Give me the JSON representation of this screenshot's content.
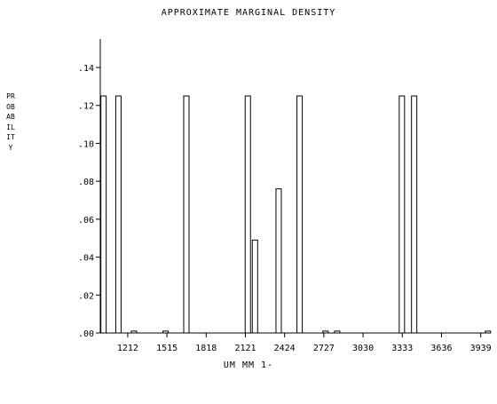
{
  "chart_data": {
    "type": "bar",
    "title": "APPROXIMATE MARGINAL DENSITY",
    "xlabel": "UM MM 1-",
    "ylabel": "PROBABILITY",
    "x_ticks": [
      1212,
      1515,
      1818,
      2121,
      2424,
      2727,
      3030,
      3333,
      3636,
      3939
    ],
    "y_ticks": [
      ".00",
      ".02",
      ".04",
      ".06",
      ".08",
      ".10",
      ".12",
      ".14"
    ],
    "xlim": [
      1000,
      4010
    ],
    "ylim": [
      0,
      0.155
    ],
    "grid": false,
    "bars": [
      {
        "x": 1025,
        "y": 0.125
      },
      {
        "x": 1140,
        "y": 0.125
      },
      {
        "x": 1260,
        "y": 0.001
      },
      {
        "x": 1505,
        "y": 0.001
      },
      {
        "x": 1665,
        "y": 0.125
      },
      {
        "x": 2140,
        "y": 0.125
      },
      {
        "x": 2195,
        "y": 0.049
      },
      {
        "x": 2378,
        "y": 0.076
      },
      {
        "x": 2540,
        "y": 0.125
      },
      {
        "x": 2740,
        "y": 0.001
      },
      {
        "x": 2830,
        "y": 0.001
      },
      {
        "x": 3330,
        "y": 0.125
      },
      {
        "x": 3425,
        "y": 0.125
      },
      {
        "x": 3995,
        "y": 0.001
      }
    ]
  }
}
